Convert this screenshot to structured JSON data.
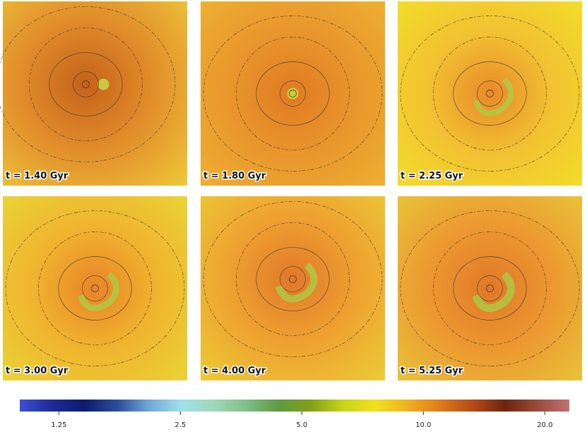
{
  "panels": [
    {
      "label": "t = 1.40 Gyr"
    },
    {
      "label": "t = 1.80 Gyr"
    },
    {
      "label": "t = 2.25 Gyr"
    },
    {
      "label": "t = 3.00 Gyr"
    },
    {
      "label": "t = 4.00 Gyr"
    },
    {
      "label": "t = 5.25 Gyr"
    }
  ],
  "colorbar": {
    "scale": "log",
    "lim": [
      1,
      23
    ],
    "ticks": [
      1.25,
      2.5,
      {
        "value": 5,
        "label": "5.0"
      },
      {
        "value": 10,
        "label": "10.0"
      },
      {
        "value": 20,
        "label": "20.0"
      }
    ],
    "colors": [
      "#3f4fd8",
      "#1c2a9a",
      "#0d1a6e",
      "#2a4c9c",
      "#6fa8d8",
      "#9fe0ec",
      "#9fd8b8",
      "#7fbf88",
      "#5f9a40",
      "#7fa018",
      "#c8d418",
      "#f2e020",
      "#f0b020",
      "#e07a1c",
      "#b84a14",
      "#6e2410",
      "#9a4a3a",
      "#c07070"
    ]
  }
}
